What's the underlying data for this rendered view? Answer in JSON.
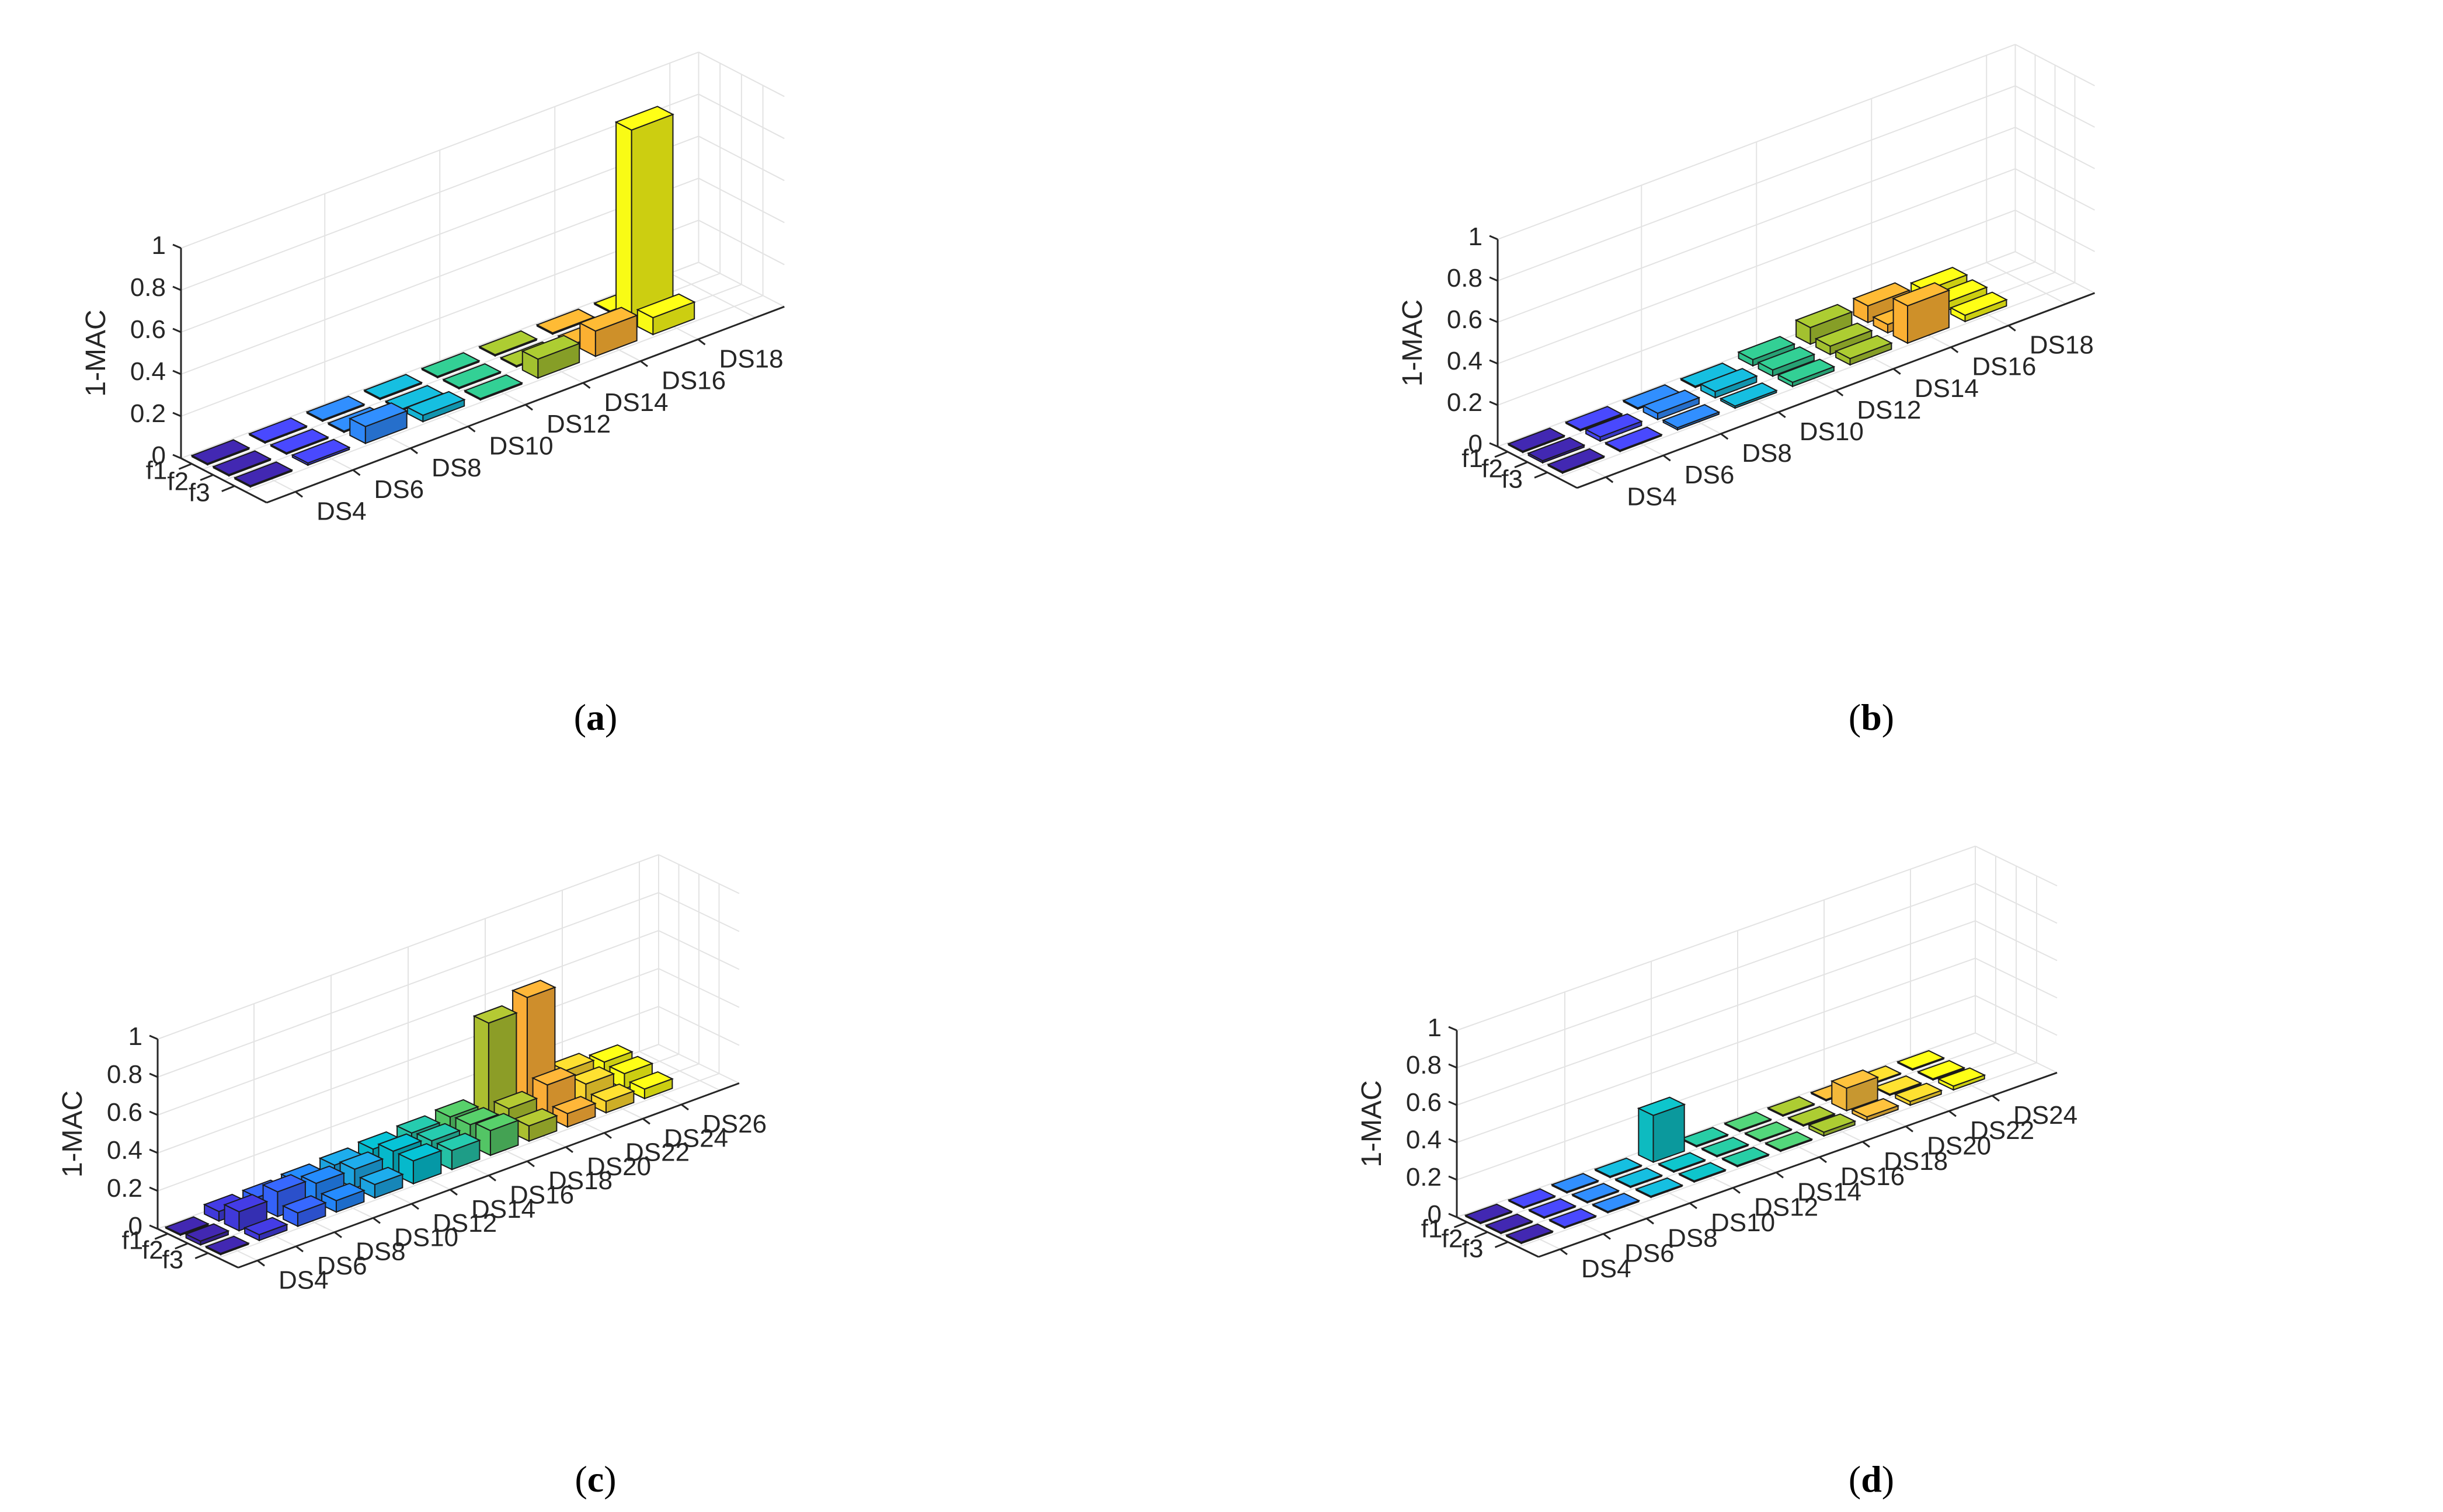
{
  "figure": {
    "panel_labels": [
      "a",
      "b",
      "c",
      "d"
    ]
  },
  "chart_data": [
    {
      "type": "bar3d",
      "panel": "a",
      "zlabel": "1-MAC",
      "zlim": [
        0,
        1
      ],
      "zticks": [
        "0",
        "0.2",
        "0.4",
        "0.6",
        "0.8",
        "1"
      ],
      "rows": [
        "f1",
        "f2",
        "f3"
      ],
      "columns": [
        "DS4",
        "DS6",
        "DS8",
        "DS10",
        "DS12",
        "DS14",
        "DS16",
        "DS18"
      ],
      "colors": [
        "#3e26a8",
        "#4545f0",
        "#2e87f7",
        "#15b4d4",
        "#30c48d",
        "#a3c12f",
        "#fbb032",
        "#f9fb15"
      ],
      "values": [
        [
          0.0,
          0.0,
          0.0,
          0.0,
          0.0,
          0.0,
          0.0,
          0.0
        ],
        [
          0.0,
          0.0,
          0.0,
          0.0,
          0.0,
          0.0,
          0.0,
          0.92
        ],
        [
          0.0,
          0.01,
          0.08,
          0.03,
          0.0,
          0.09,
          0.12,
          0.08
        ]
      ]
    },
    {
      "type": "bar3d",
      "panel": "b",
      "zlabel": "1-MAC",
      "zlim": [
        0,
        1
      ],
      "zticks": [
        "0",
        "0.2",
        "0.4",
        "0.6",
        "0.8",
        "1"
      ],
      "rows": [
        "f1",
        "f2",
        "f3"
      ],
      "columns": [
        "DS4",
        "DS6",
        "DS8",
        "DS10",
        "DS12",
        "DS14",
        "DS16",
        "DS18"
      ],
      "colors": [
        "#3e26a8",
        "#4545f0",
        "#2e87f7",
        "#15b4d4",
        "#30c48d",
        "#a3c12f",
        "#fbb032",
        "#f9fb15"
      ],
      "values": [
        [
          0.0,
          0.0,
          0.0,
          0.0,
          0.03,
          0.08,
          0.08,
          0.05
        ],
        [
          0.01,
          0.02,
          0.03,
          0.03,
          0.03,
          0.04,
          0.04,
          0.04
        ],
        [
          0.0,
          0.0,
          0.01,
          0.01,
          0.02,
          0.03,
          0.18,
          0.03
        ]
      ]
    },
    {
      "type": "bar3d",
      "panel": "c",
      "zlabel": "1-MAC",
      "zlim": [
        0,
        1
      ],
      "zticks": [
        "0",
        "0.2",
        "0.4",
        "0.6",
        "0.8",
        "1"
      ],
      "rows": [
        "f1",
        "f2",
        "f3"
      ],
      "columns": [
        "DS4",
        "DS6",
        "DS8",
        "DS10",
        "DS12",
        "DS14",
        "DS16",
        "DS18",
        "DS20",
        "DS22",
        "DS24",
        "DS26"
      ],
      "colors": [
        "#3e26a8",
        "#4039d9",
        "#3462f8",
        "#2384f6",
        "#1ca3e0",
        "#06b9cb",
        "#24c0a5",
        "#53c565",
        "#abbf30",
        "#fbad36",
        "#fad42e",
        "#f9fb15"
      ],
      "values": [
        [
          0.0,
          0.05,
          0.05,
          0.06,
          0.07,
          0.08,
          0.09,
          0.1,
          0.52,
          0.58,
          0.12,
          0.09
        ],
        [
          0.02,
          0.1,
          0.13,
          0.1,
          0.1,
          0.12,
          0.1,
          0.11,
          0.12,
          0.17,
          0.1,
          0.08
        ],
        [
          0.0,
          0.03,
          0.07,
          0.06,
          0.07,
          0.12,
          0.1,
          0.13,
          0.08,
          0.07,
          0.06,
          0.05
        ]
      ]
    },
    {
      "type": "bar3d",
      "panel": "d",
      "zlabel": "1-MAC",
      "zlim": [
        0,
        1
      ],
      "zticks": [
        "0",
        "0.2",
        "0.4",
        "0.6",
        "0.8",
        "1"
      ],
      "rows": [
        "f1",
        "f2",
        "f3"
      ],
      "columns": [
        "DS4",
        "DS6",
        "DS8",
        "DS10",
        "DS12",
        "DS14",
        "DS16",
        "DS18",
        "DS20",
        "DS22",
        "DS24"
      ],
      "colors": [
        "#3e26a8",
        "#4545f0",
        "#2e87f7",
        "#15b4d4",
        "#0dbbc0",
        "#26c29d",
        "#4ecb74",
        "#a3c12f",
        "#f3b83a",
        "#fad42e",
        "#f9fb15"
      ],
      "values": [
        [
          0.0,
          0.0,
          0.0,
          0.0,
          0.25,
          0.0,
          0.0,
          0.0,
          0.0,
          0.0,
          0.0
        ],
        [
          0.0,
          0.0,
          0.0,
          0.0,
          0.0,
          0.0,
          0.0,
          0.0,
          0.12,
          0.0,
          0.0
        ],
        [
          0.0,
          0.0,
          0.0,
          0.0,
          0.0,
          0.0,
          0.0,
          0.02,
          0.02,
          0.02,
          0.02
        ]
      ]
    }
  ]
}
